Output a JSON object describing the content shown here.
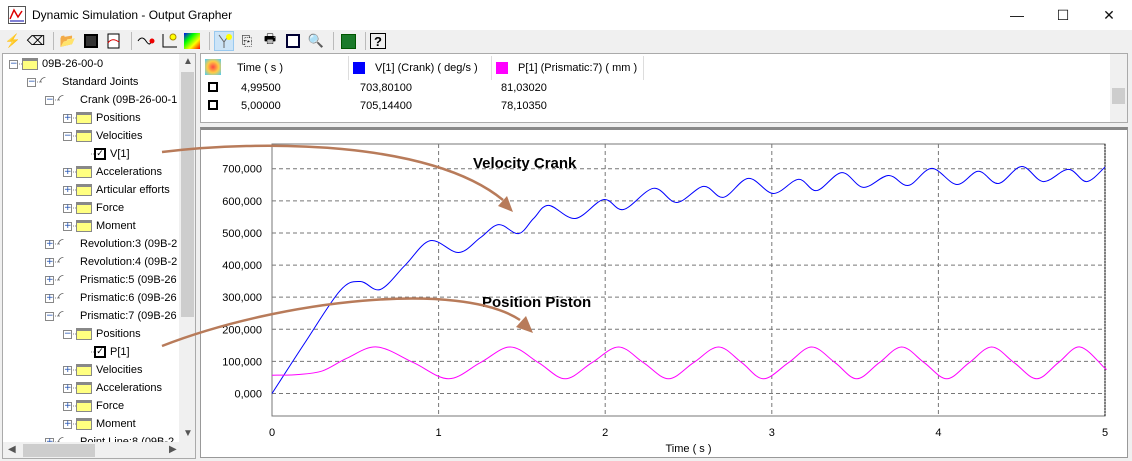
{
  "window": {
    "title": "Dynamic Simulation - Output Grapher",
    "minimize": "—",
    "maximize": "☐",
    "close": "✕"
  },
  "toolbar": {
    "icons": [
      "lightning-icon",
      "eraser-icon",
      "open-folder-icon",
      "save-icon",
      "export-curve-icon",
      "curve-icon",
      "axis-point-icon",
      "colormap-icon",
      "cursor-tool-icon",
      "copy-icon",
      "print-icon",
      "zoom-fit-icon",
      "zoom-icon",
      "excel-icon",
      "help-icon"
    ]
  },
  "tree": {
    "items": [
      {
        "label": "09B-26-00-0",
        "type": "folder",
        "exp": "−",
        "lvl": 0
      },
      {
        "label": "Standard Joints",
        "type": "joint",
        "exp": "−",
        "lvl": 1
      },
      {
        "label": "Crank (09B-26-00-1",
        "type": "joint",
        "exp": "−",
        "lvl": 2
      },
      {
        "label": "Positions",
        "type": "folder",
        "exp": "+",
        "lvl": 3
      },
      {
        "label": "Velocities",
        "type": "folder",
        "exp": "−",
        "lvl": 3
      },
      {
        "label": "V[1]",
        "type": "check",
        "exp": "",
        "lvl": 4
      },
      {
        "label": "Accelerations",
        "type": "folder",
        "exp": "+",
        "lvl": 3
      },
      {
        "label": "Articular efforts",
        "type": "folder",
        "exp": "+",
        "lvl": 3
      },
      {
        "label": "Force",
        "type": "folder",
        "exp": "+",
        "lvl": 3
      },
      {
        "label": "Moment",
        "type": "folder",
        "exp": "+",
        "lvl": 3
      },
      {
        "label": "Revolution:3 (09B-2",
        "type": "joint",
        "exp": "+",
        "lvl": 2
      },
      {
        "label": "Revolution:4 (09B-2",
        "type": "joint",
        "exp": "+",
        "lvl": 2
      },
      {
        "label": "Prismatic:5 (09B-26",
        "type": "joint",
        "exp": "+",
        "lvl": 2
      },
      {
        "label": "Prismatic:6 (09B-26",
        "type": "joint",
        "exp": "+",
        "lvl": 2
      },
      {
        "label": "Prismatic:7 (09B-26",
        "type": "joint",
        "exp": "−",
        "lvl": 2
      },
      {
        "label": "Positions",
        "type": "folder",
        "exp": "−",
        "lvl": 3
      },
      {
        "label": "P[1]",
        "type": "check",
        "exp": "",
        "lvl": 4
      },
      {
        "label": "Velocities",
        "type": "folder",
        "exp": "+",
        "lvl": 3
      },
      {
        "label": "Accelerations",
        "type": "folder",
        "exp": "+",
        "lvl": 3
      },
      {
        "label": "Force",
        "type": "folder",
        "exp": "+",
        "lvl": 3
      },
      {
        "label": "Moment",
        "type": "folder",
        "exp": "+",
        "lvl": 3
      },
      {
        "label": "Point Line:8 (09B-2",
        "type": "joint",
        "exp": "+",
        "lvl": 2
      }
    ]
  },
  "table": {
    "headers": [
      "Time ( s )",
      "V[1] (Crank) ( deg/s )",
      "P[1] (Prismatic:7) ( mm )"
    ],
    "rows": [
      [
        "4,99500",
        "703,80100",
        "81,03020"
      ],
      [
        "5,00000",
        "705,14400",
        "78,10350"
      ]
    ]
  },
  "colors": {
    "velocity": "#0000ff",
    "position": "#ff00ff",
    "arrow": "#b87b5a"
  },
  "chart_data": {
    "type": "line",
    "xlabel": "Time ( s )",
    "ylabel": "",
    "xlim": [
      0,
      5
    ],
    "ylim": [
      -70,
      777
    ],
    "xticks": [
      0,
      1,
      2,
      3,
      4,
      5
    ],
    "yticks": [
      0,
      100,
      200,
      300,
      400,
      500,
      600,
      700
    ],
    "ytick_labels": [
      "0,000",
      "100,000",
      "200,000",
      "300,000",
      "400,000",
      "500,000",
      "600,000",
      "700,000"
    ],
    "grid": true,
    "annotations": [
      "Velocity Crank",
      "Position Piston"
    ],
    "series": [
      {
        "name": "V[1] (Crank) ( deg/s )",
        "color": "#0000ff",
        "points": [
          [
            0,
            0
          ],
          [
            0.2,
            160
          ],
          [
            0.41,
            321
          ],
          [
            0.53,
            349
          ],
          [
            0.65,
            324
          ],
          [
            0.8,
            400
          ],
          [
            0.95,
            476
          ],
          [
            1.12,
            439
          ],
          [
            1.25,
            485
          ],
          [
            1.36,
            526
          ],
          [
            1.48,
            498
          ],
          [
            1.57,
            545
          ],
          [
            1.66,
            586
          ],
          [
            1.82,
            545
          ],
          [
            1.99,
            604
          ],
          [
            2.11,
            573
          ],
          [
            2.29,
            639
          ],
          [
            2.43,
            595
          ],
          [
            2.59,
            645
          ],
          [
            2.71,
            611
          ],
          [
            2.86,
            670
          ],
          [
            3.01,
            623
          ],
          [
            3.16,
            667
          ],
          [
            3.27,
            632
          ],
          [
            3.42,
            688
          ],
          [
            3.55,
            642
          ],
          [
            3.7,
            679
          ],
          [
            3.82,
            648
          ],
          [
            3.96,
            701
          ],
          [
            4.11,
            651
          ],
          [
            4.24,
            692
          ],
          [
            4.36,
            654
          ],
          [
            4.5,
            707
          ],
          [
            4.63,
            660
          ],
          [
            4.78,
            698
          ],
          [
            4.89,
            660
          ],
          [
            5.0,
            705
          ]
        ]
      },
      {
        "name": "P[1] (Prismatic:7) ( mm )",
        "color": "#ff00ff",
        "points": [
          [
            0,
            57
          ],
          [
            0.15,
            59
          ],
          [
            0.3,
            70
          ],
          [
            0.45,
            110
          ],
          [
            0.63,
            145
          ],
          [
            0.85,
            96
          ],
          [
            1.06,
            46
          ],
          [
            1.25,
            96
          ],
          [
            1.43,
            145
          ],
          [
            1.6,
            96
          ],
          [
            1.76,
            46
          ],
          [
            1.92,
            96
          ],
          [
            2.08,
            145
          ],
          [
            2.23,
            96
          ],
          [
            2.38,
            46
          ],
          [
            2.53,
            96
          ],
          [
            2.68,
            145
          ],
          [
            2.82,
            96
          ],
          [
            2.95,
            46
          ],
          [
            3.1,
            96
          ],
          [
            3.24,
            145
          ],
          [
            3.38,
            96
          ],
          [
            3.51,
            46
          ],
          [
            3.645,
            96
          ],
          [
            3.78,
            145
          ],
          [
            3.915,
            96
          ],
          [
            4.05,
            46
          ],
          [
            4.185,
            96
          ],
          [
            4.32,
            145
          ],
          [
            4.455,
            96
          ],
          [
            4.59,
            46
          ],
          [
            4.72,
            96
          ],
          [
            4.85,
            145
          ],
          [
            4.995,
            81
          ],
          [
            5.0,
            78
          ]
        ]
      }
    ]
  }
}
